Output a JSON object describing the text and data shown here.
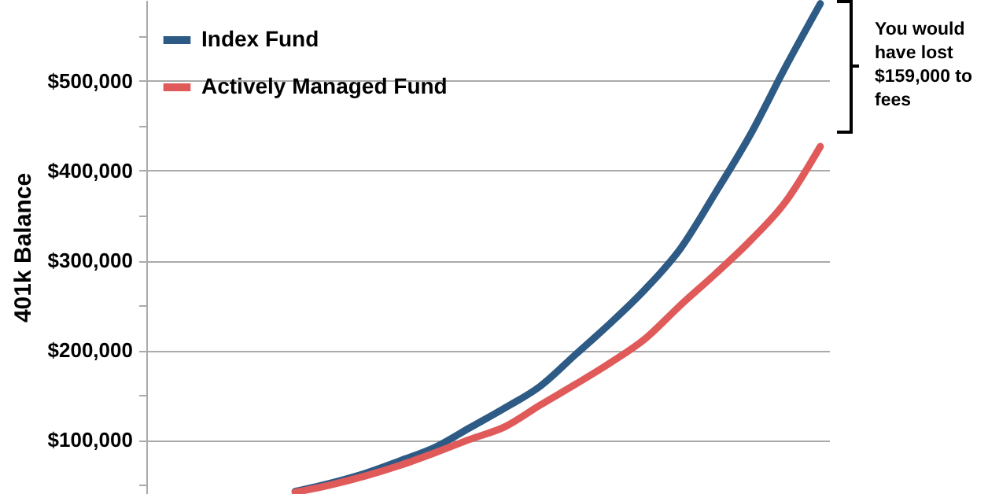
{
  "chart_data": {
    "type": "line",
    "ylabel": "401k Balance",
    "categories": [
      null,
      null,
      null,
      null,
      null,
      null,
      null,
      null,
      null,
      null,
      null,
      null,
      null,
      null,
      null,
      null,
      null,
      null,
      null,
      null
    ],
    "series": [
      {
        "name": "Index Fund",
        "color": "#2e5b85",
        "values": [
          null,
          null,
          null,
          null,
          43000,
          52000,
          63000,
          77000,
          92000,
          114000,
          136000,
          160000,
          195000,
          230000,
          268000,
          313000,
          375000,
          440000,
          515000,
          586000
        ]
      },
      {
        "name": "Actively Managed Fund",
        "color": "#e05a5a",
        "values": [
          null,
          null,
          null,
          null,
          42000,
          50000,
          60000,
          72000,
          86000,
          101000,
          115000,
          139000,
          162000,
          186000,
          213000,
          250000,
          285000,
          322000,
          365000,
          427000
        ]
      }
    ],
    "ylim": [
      40000,
      590000
    ],
    "yticks": [
      {
        "value": 50000,
        "label": null
      },
      {
        "value": 100000,
        "label": "$100,000"
      },
      {
        "value": 150000,
        "label": null
      },
      {
        "value": 200000,
        "label": "$200,000"
      },
      {
        "value": 250000,
        "label": null
      },
      {
        "value": 300000,
        "label": "$300,000"
      },
      {
        "value": 350000,
        "label": null
      },
      {
        "value": 400000,
        "label": "$400,000"
      },
      {
        "value": 450000,
        "label": null
      },
      {
        "value": 500000,
        "label": "$500,000"
      },
      {
        "value": 550000,
        "label": null
      }
    ],
    "grid": "y",
    "legend": "top left",
    "tick_labels": "y",
    "line_style": "solid",
    "annotations": [
      "You would have lost $159,000 to fees"
    ]
  }
}
